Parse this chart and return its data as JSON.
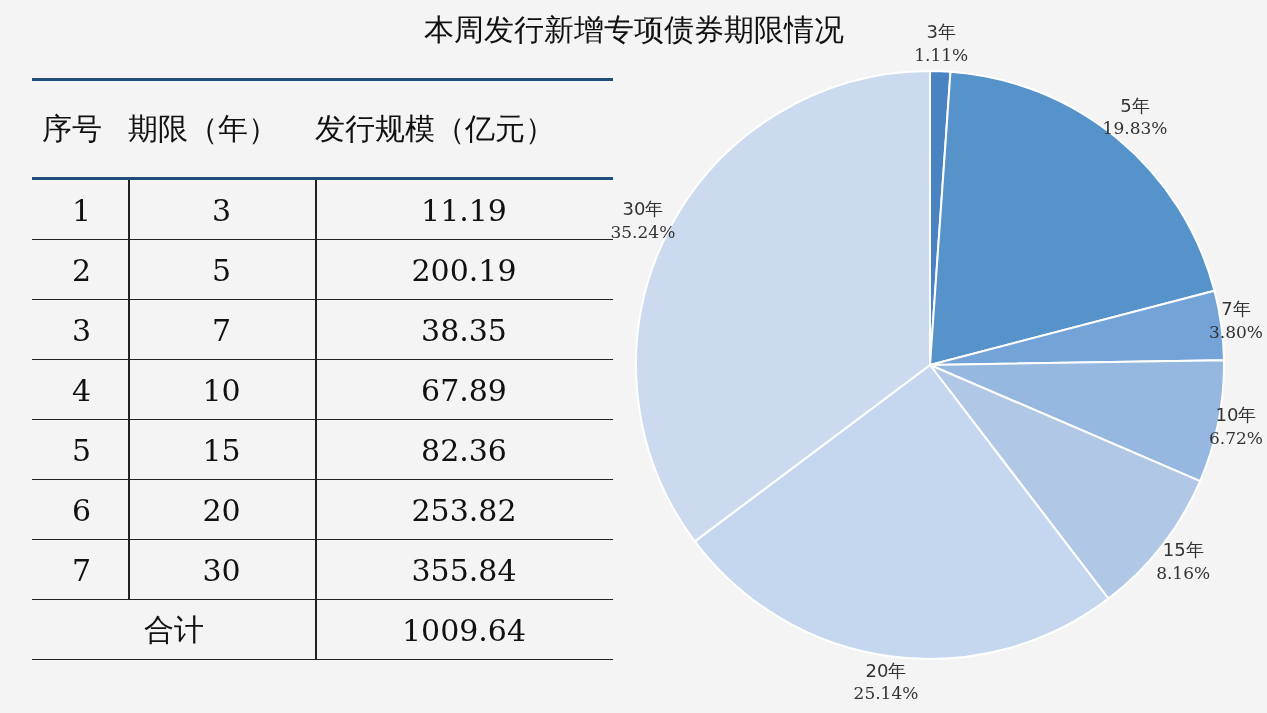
{
  "chart_data": [
    {
      "type": "heatmap",
      "title": "本周发行新增专项债券期限情况",
      "ylabel": "序号",
      "categories": [
        "期限（年）",
        "发行规模（亿元）"
      ],
      "y_categories": [
        "1",
        "2",
        "3",
        "4",
        "5",
        "6",
        "7",
        "合计"
      ],
      "cells": [
        [
          3,
          11.19
        ],
        [
          5,
          200.19
        ],
        [
          7,
          38.35
        ],
        [
          10,
          67.89
        ],
        [
          15,
          82.36
        ],
        [
          20,
          253.82
        ],
        [
          30,
          355.84
        ],
        [
          null,
          1009.64
        ]
      ],
      "data_labels": true
    },
    {
      "type": "pie",
      "categories": [
        "3年",
        "5年",
        "7年",
        "10年",
        "15年",
        "20年",
        "30年"
      ],
      "values": [
        1.11,
        19.83,
        3.8,
        6.72,
        8.16,
        25.14,
        35.24
      ],
      "colors": [
        "#4a83c2",
        "#5793cb",
        "#74a3d7",
        "#96b7df",
        "#b0c7e5",
        "#c5d7ee",
        "#cbdaee"
      ],
      "value_labels": [
        "1.11%",
        "19.83%",
        "3.80%",
        "6.72%",
        "8.16%",
        "25.14%",
        "35.24%"
      ]
    }
  ]
}
